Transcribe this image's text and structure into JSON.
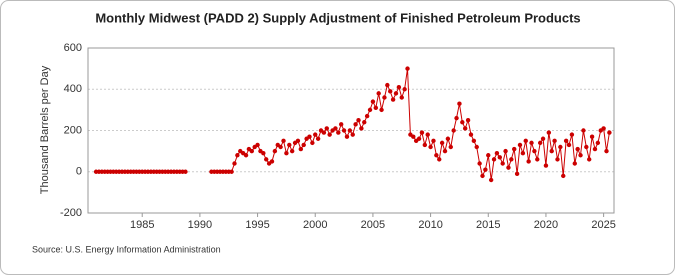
{
  "chart_data": {
    "type": "line",
    "title": "Monthly Midwest (PADD 2) Supply Adjustment of Finished Petroleum Products",
    "y_label": "Thousand Barrels per Day",
    "source": "Source: U.S. Energy Information Administration",
    "xlim": [
      1980.3,
      2025.9
    ],
    "xticks": [
      1985,
      1990,
      1995,
      2000,
      2005,
      2010,
      2015,
      2020,
      2025
    ],
    "ylim": [
      -200,
      600
    ],
    "yticks": [
      -200,
      0,
      200,
      400,
      600
    ],
    "grid": true,
    "markers": true,
    "color": "#cc0000",
    "x": [
      1981,
      1981.25,
      1981.5,
      1981.75,
      1982,
      1982.25,
      1982.5,
      1982.75,
      1983,
      1983.25,
      1983.5,
      1983.75,
      1984,
      1984.25,
      1984.5,
      1984.75,
      1985,
      1985.25,
      1985.5,
      1985.75,
      1986,
      1986.25,
      1986.5,
      1986.75,
      1987,
      1987.25,
      1987.5,
      1987.75,
      1988,
      1988.25,
      1988.5,
      1988.75,
      1990,
      1991,
      1991.25,
      1991.5,
      1991.75,
      1992,
      1992.25,
      1992.5,
      1992.75,
      1993,
      1993.25,
      1993.5,
      1993.75,
      1994,
      1994.25,
      1994.5,
      1994.75,
      1995,
      1995.25,
      1995.5,
      1995.75,
      1996,
      1996.25,
      1996.5,
      1996.75,
      1997,
      1997.25,
      1997.5,
      1997.75,
      1998,
      1998.25,
      1998.5,
      1998.75,
      1999,
      1999.25,
      1999.5,
      1999.75,
      2000,
      2000.25,
      2000.5,
      2000.75,
      2001,
      2001.25,
      2001.5,
      2001.75,
      2002,
      2002.25,
      2002.5,
      2002.75,
      2003,
      2003.25,
      2003.5,
      2003.75,
      2004,
      2004.25,
      2004.5,
      2004.75,
      2005,
      2005.25,
      2005.5,
      2005.75,
      2006,
      2006.25,
      2006.5,
      2006.75,
      2007,
      2007.25,
      2007.5,
      2007.75,
      2008,
      2008.25,
      2008.5,
      2008.75,
      2009,
      2009.25,
      2009.5,
      2009.75,
      2010,
      2010.25,
      2010.5,
      2010.75,
      2011,
      2011.25,
      2011.5,
      2011.75,
      2012,
      2012.25,
      2012.5,
      2012.75,
      2013,
      2013.25,
      2013.5,
      2013.75,
      2014,
      2014.25,
      2014.5,
      2014.75,
      2015,
      2015.25,
      2015.5,
      2015.75,
      2016,
      2016.25,
      2016.5,
      2016.75,
      2017,
      2017.25,
      2017.5,
      2017.75,
      2018,
      2018.25,
      2018.5,
      2018.75,
      2019,
      2019.25,
      2019.5,
      2019.75,
      2020,
      2020.25,
      2020.5,
      2020.75,
      2021,
      2021.25,
      2021.5,
      2021.75,
      2022,
      2022.25,
      2022.5,
      2022.75,
      2023,
      2023.25,
      2023.5,
      2023.75,
      2024,
      2024.25,
      2024.5,
      2024.75,
      2025,
      2025.25,
      2025.5
    ],
    "values": [
      0,
      0,
      0,
      0,
      0,
      0,
      0,
      0,
      0,
      0,
      0,
      0,
      0,
      0,
      0,
      0,
      0,
      0,
      0,
      0,
      0,
      0,
      0,
      0,
      0,
      0,
      0,
      0,
      0,
      0,
      0,
      0,
      null,
      0,
      0,
      0,
      0,
      0,
      0,
      0,
      0,
      40,
      80,
      100,
      90,
      80,
      110,
      100,
      120,
      130,
      100,
      90,
      60,
      40,
      50,
      100,
      130,
      120,
      150,
      90,
      130,
      100,
      140,
      150,
      110,
      130,
      160,
      170,
      140,
      180,
      160,
      200,
      190,
      210,
      180,
      200,
      210,
      190,
      230,
      200,
      170,
      200,
      180,
      230,
      250,
      210,
      240,
      270,
      300,
      340,
      310,
      380,
      300,
      360,
      420,
      390,
      350,
      380,
      410,
      360,
      400,
      500,
      180,
      170,
      150,
      160,
      190,
      130,
      180,
      120,
      150,
      80,
      60,
      140,
      100,
      160,
      120,
      200,
      260,
      330,
      240,
      210,
      250,
      180,
      150,
      120,
      40,
      -20,
      10,
      80,
      -40,
      60,
      90,
      70,
      40,
      100,
      20,
      60,
      110,
      -10,
      130,
      90,
      150,
      50,
      140,
      100,
      60,
      140,
      160,
      30,
      190,
      100,
      150,
      60,
      120,
      -20,
      150,
      130,
      180,
      40,
      110,
      80,
      200,
      120,
      60,
      170,
      110,
      140,
      200,
      210,
      100,
      190
    ]
  }
}
